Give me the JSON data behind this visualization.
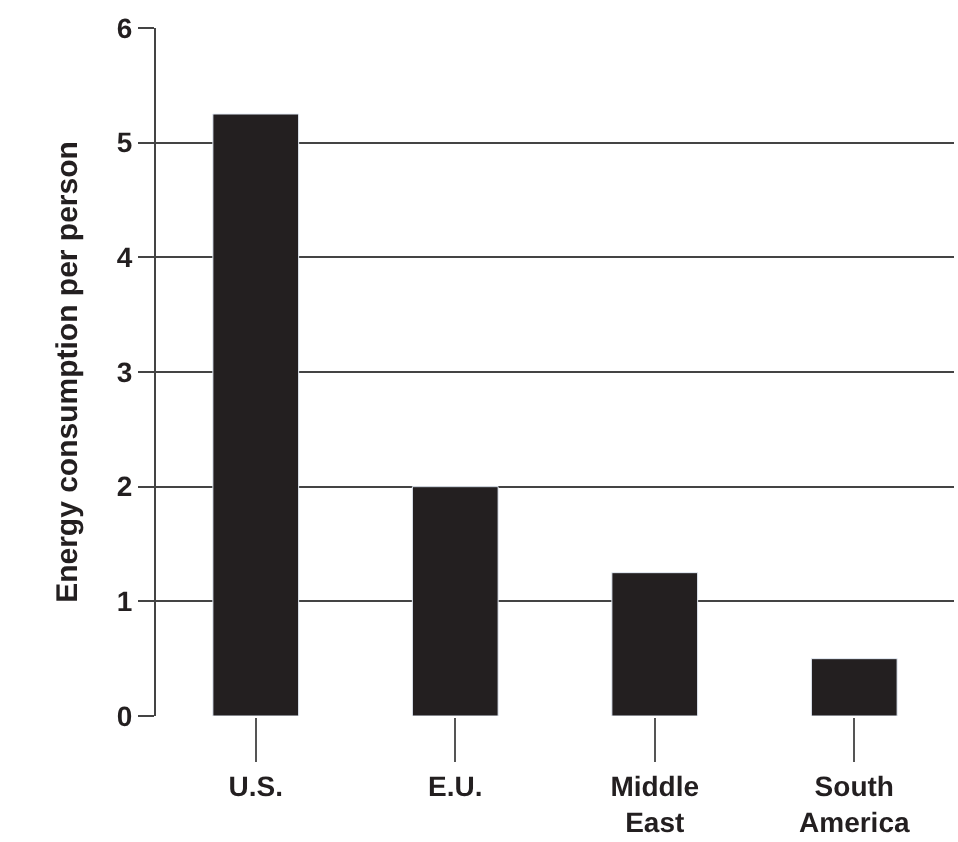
{
  "chart_data": {
    "type": "bar",
    "ylabel": "Energy consumption per person",
    "categories": [
      "U.S.",
      "E.U.",
      "Middle East",
      "South America"
    ],
    "values": [
      5.25,
      2,
      1.25,
      0.5
    ],
    "color": "#231f20",
    "ylim": [
      0,
      6
    ],
    "yticks": [
      0,
      1,
      2,
      3,
      4,
      5,
      6
    ],
    "grid": "y"
  }
}
